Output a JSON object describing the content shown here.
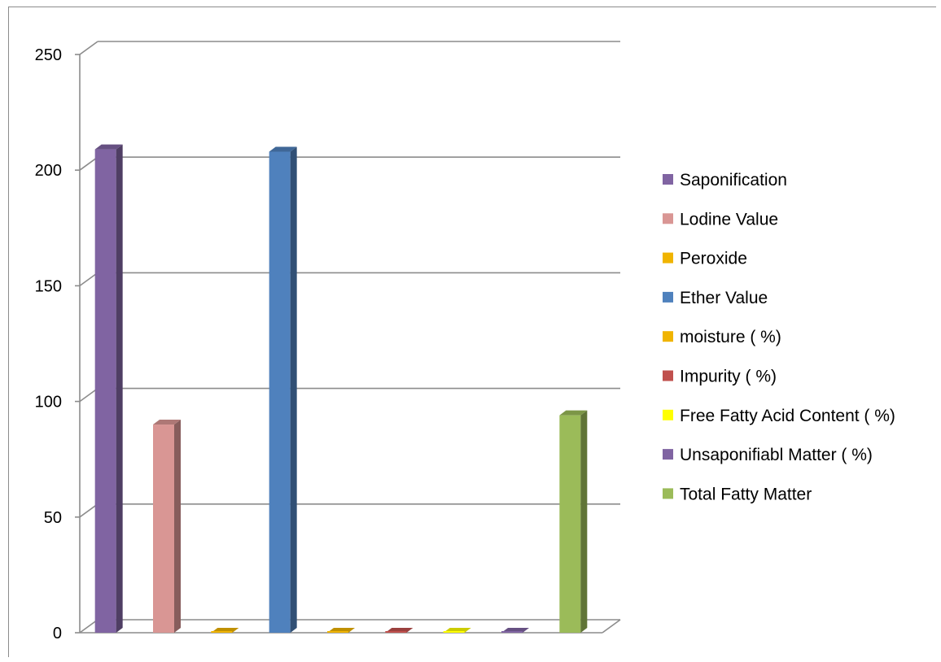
{
  "chart_data": {
    "type": "bar",
    "title": "",
    "xlabel": "",
    "ylabel": "",
    "ylim": [
      0,
      250
    ],
    "yticks": [
      0,
      50,
      100,
      150,
      200,
      250
    ],
    "grid": true,
    "legend_position": "right",
    "three_d": true,
    "series": [
      {
        "name": "Saponification",
        "value": 209,
        "color": "#8064A2"
      },
      {
        "name": "Lodine Value",
        "value": 90,
        "color": "#D99694"
      },
      {
        "name": "Peroxide",
        "value": 0.5,
        "color": "#F0B400"
      },
      {
        "name": "Ether Value",
        "value": 208,
        "color": "#4F81BD"
      },
      {
        "name": "moisture ( %)",
        "value": 0.3,
        "color": "#F0B400"
      },
      {
        "name": "Impurity ( %)",
        "value": 0.2,
        "color": "#C0504D"
      },
      {
        "name": "Free Fatty Acid Content ( %)",
        "value": 0.3,
        "color": "#FFFF00"
      },
      {
        "name": "Unsaponifiabl Matter ( %)",
        "value": 0.2,
        "color": "#8064A2"
      },
      {
        "name": "Total Fatty Matter",
        "value": 94,
        "color": "#9BBB59"
      }
    ]
  }
}
